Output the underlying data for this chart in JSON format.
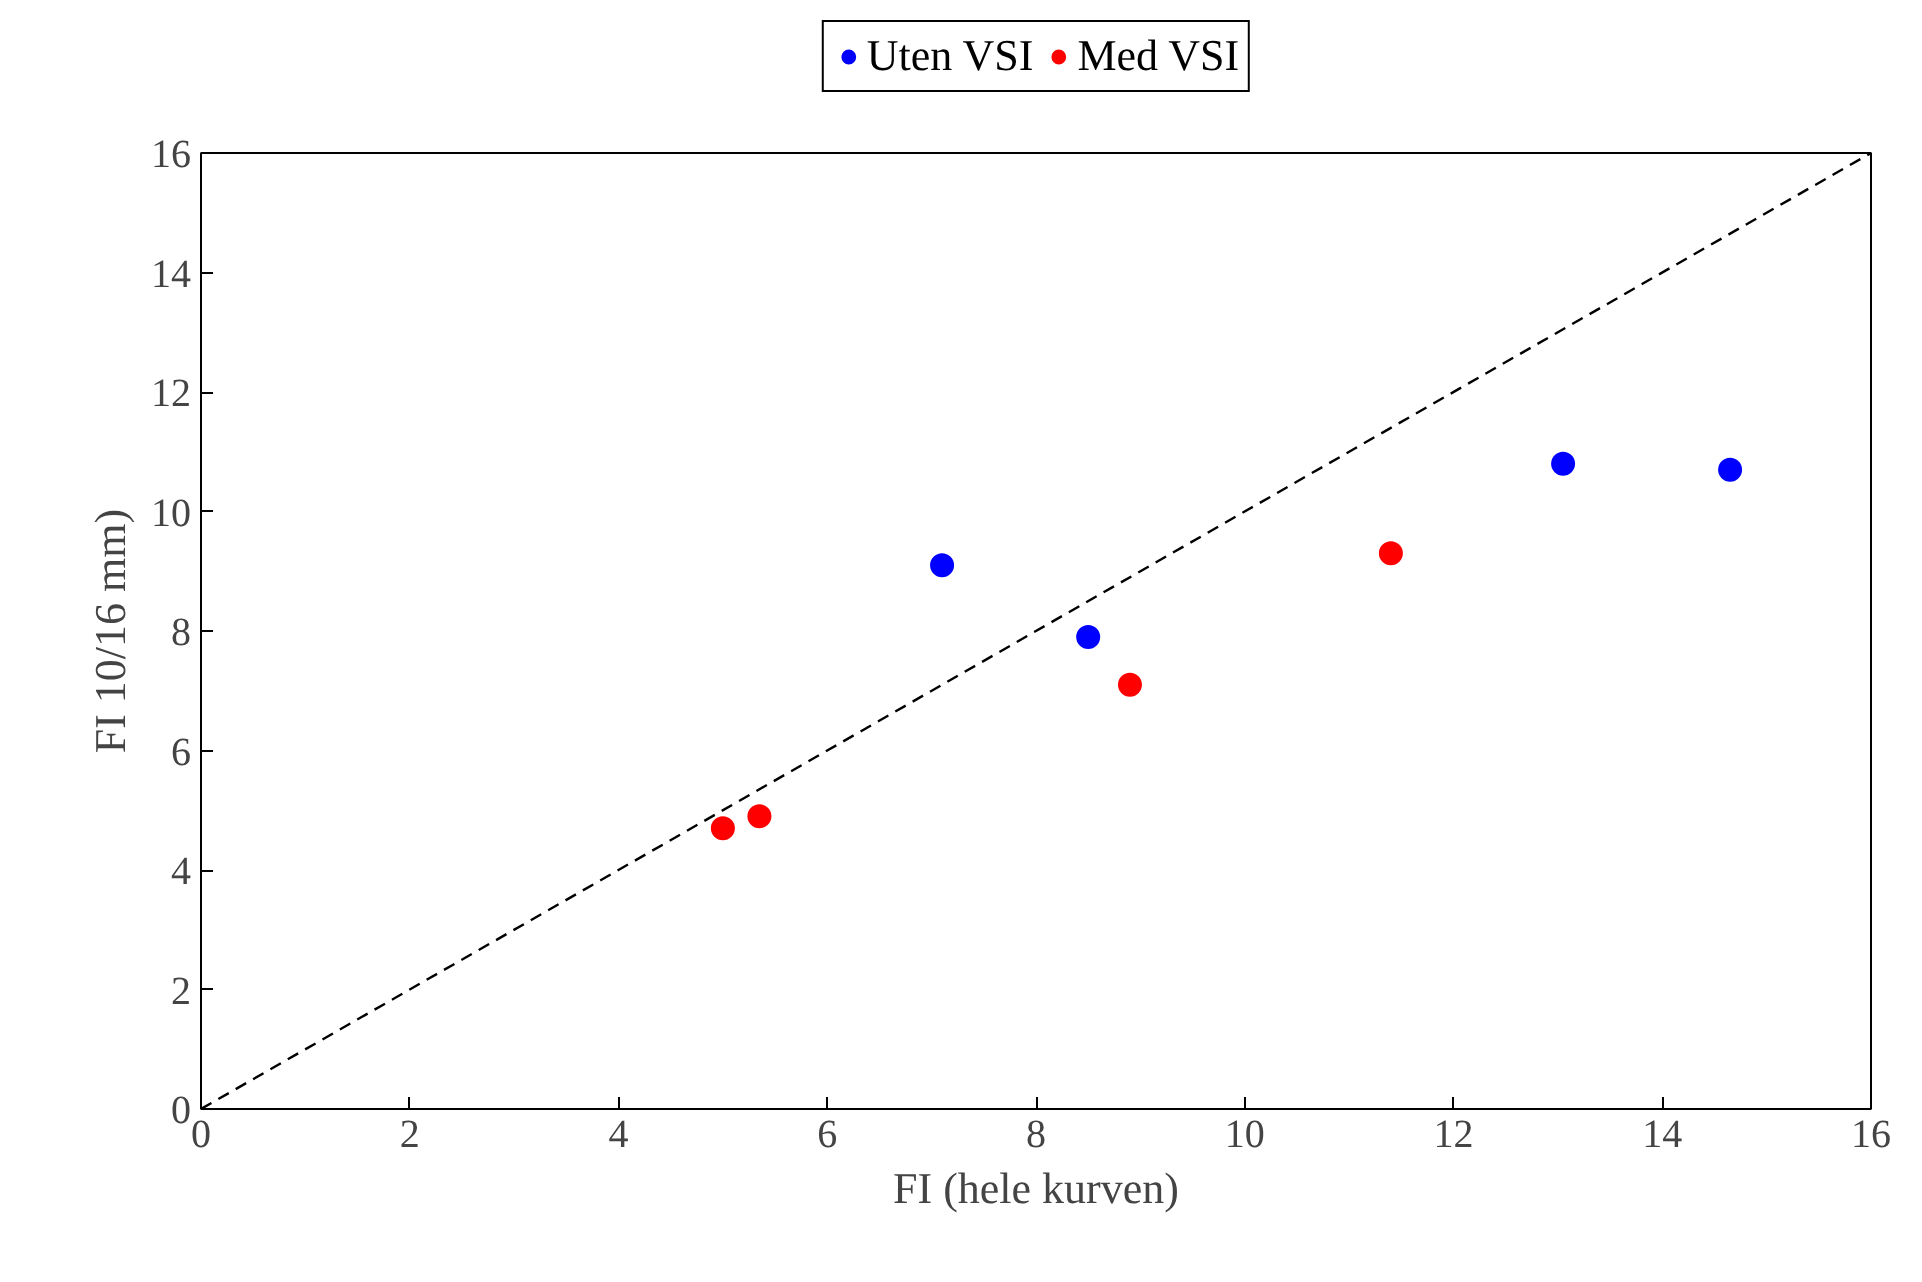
{
  "chart_data": {
    "type": "scatter",
    "xlabel": "FI (hele kurven)",
    "ylabel": "FI 10/16 mm)",
    "xlim": [
      0,
      16
    ],
    "ylim": [
      0,
      16
    ],
    "xticks": [
      0,
      2,
      4,
      6,
      8,
      10,
      12,
      14,
      16
    ],
    "yticks": [
      0,
      2,
      4,
      6,
      8,
      10,
      12,
      14,
      16
    ],
    "grid": false,
    "legend": "top",
    "marker": "circle",
    "series": [
      {
        "name": "Uten VSI",
        "color": "#0000ff",
        "x": [
          7.1,
          8.5,
          13.05,
          14.65
        ],
        "values": [
          9.1,
          7.9,
          10.8,
          10.7
        ]
      },
      {
        "name": "Med VSI",
        "color": "#ff0000",
        "x": [
          5.0,
          5.35,
          8.9,
          11.4
        ],
        "values": [
          4.7,
          4.9,
          7.1,
          9.3
        ]
      },
      {
        "type": "line",
        "color": "#000000",
        "line_style": "dashed",
        "marker": "none",
        "x": [
          0,
          16
        ],
        "values": [
          0,
          16
        ]
      }
    ]
  }
}
